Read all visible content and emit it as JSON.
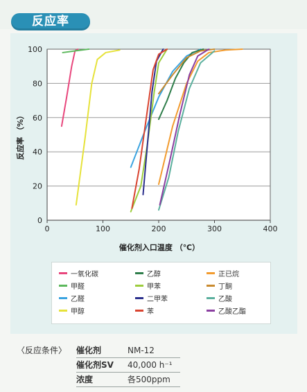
{
  "header": {
    "title": "反应率"
  },
  "chart_data": {
    "type": "line",
    "xlabel": "催化剂入口温度 （℃）",
    "ylabel": "反应率 （%）",
    "xlim": [
      0,
      400
    ],
    "ylim": [
      0,
      100
    ],
    "x_ticks": [
      0,
      100,
      200,
      300,
      400
    ],
    "y_ticks": [
      0,
      20,
      40,
      60,
      80,
      100
    ],
    "grid": "horizontal",
    "legend_position": "bottom",
    "series": [
      {
        "name": "一氧化碳",
        "color": "#e8467c",
        "points": [
          [
            26,
            55
          ],
          [
            35,
            72
          ],
          [
            44,
            90
          ],
          [
            50,
            99
          ],
          [
            55,
            100
          ]
        ]
      },
      {
        "name": "甲醛",
        "color": "#5cb85c",
        "points": [
          [
            28,
            98
          ],
          [
            50,
            99
          ],
          [
            75,
            100
          ]
        ]
      },
      {
        "name": "乙醛",
        "color": "#3aa3e0",
        "points": [
          [
            150,
            31
          ],
          [
            175,
            52
          ],
          [
            200,
            72
          ],
          [
            225,
            87
          ],
          [
            250,
            96
          ],
          [
            275,
            100
          ]
        ]
      },
      {
        "name": "甲醇",
        "color": "#e6e23a",
        "points": [
          [
            52,
            9
          ],
          [
            68,
            48
          ],
          [
            80,
            80
          ],
          [
            90,
            94
          ],
          [
            105,
            98
          ],
          [
            130,
            99.5
          ]
        ]
      },
      {
        "name": "乙醇",
        "color": "#2e7d4a",
        "points": [
          [
            200,
            59
          ],
          [
            215,
            70
          ],
          [
            230,
            83
          ],
          [
            245,
            92
          ],
          [
            260,
            98
          ],
          [
            280,
            100
          ]
        ]
      },
      {
        "name": "甲苯",
        "color": "#9ccc3c",
        "points": [
          [
            150,
            5
          ],
          [
            168,
            20
          ],
          [
            180,
            45
          ],
          [
            192,
            75
          ],
          [
            200,
            92
          ],
          [
            215,
            100
          ]
        ]
      },
      {
        "name": "二甲苯",
        "color": "#2b2f8c",
        "points": [
          [
            172,
            15
          ],
          [
            180,
            45
          ],
          [
            188,
            75
          ],
          [
            196,
            93
          ],
          [
            208,
            100
          ]
        ]
      },
      {
        "name": "苯",
        "color": "#d9432f",
        "points": [
          [
            152,
            7
          ],
          [
            165,
            30
          ],
          [
            180,
            65
          ],
          [
            190,
            88
          ],
          [
            200,
            97
          ],
          [
            215,
            100
          ]
        ]
      },
      {
        "name": "正已烷",
        "color": "#f29b2e",
        "points": [
          [
            200,
            21
          ],
          [
            225,
            55
          ],
          [
            250,
            80
          ],
          [
            270,
            93
          ],
          [
            290,
            98
          ],
          [
            320,
            99.5
          ],
          [
            350,
            100
          ]
        ]
      },
      {
        "name": "丁酮",
        "color": "#c98a2e",
        "points": [
          [
            200,
            74
          ],
          [
            225,
            85
          ],
          [
            250,
            95
          ],
          [
            275,
            99
          ],
          [
            300,
            100
          ]
        ]
      },
      {
        "name": "乙酸",
        "color": "#5aaf9d",
        "points": [
          [
            200,
            6
          ],
          [
            218,
            25
          ],
          [
            235,
            52
          ],
          [
            255,
            77
          ],
          [
            275,
            92
          ],
          [
            300,
            99
          ]
        ]
      },
      {
        "name": "乙酸乙酯",
        "color": "#8a3ea0",
        "points": [
          [
            202,
            9
          ],
          [
            220,
            35
          ],
          [
            238,
            62
          ],
          [
            255,
            85
          ],
          [
            270,
            96
          ],
          [
            290,
            100
          ]
        ]
      }
    ]
  },
  "legend": {
    "items": [
      {
        "label": "一氧化碳",
        "color": "#e8467c"
      },
      {
        "label": "乙醇",
        "color": "#2e7d4a"
      },
      {
        "label": "正已烷",
        "color": "#f29b2e"
      },
      {
        "label": "甲醛",
        "color": "#5cb85c"
      },
      {
        "label": "甲苯",
        "color": "#9ccc3c"
      },
      {
        "label": "丁酮",
        "color": "#c98a2e"
      },
      {
        "label": "乙醛",
        "color": "#3aa3e0"
      },
      {
        "label": "二甲苯",
        "color": "#2b2f8c"
      },
      {
        "label": "乙酸",
        "color": "#5aaf9d"
      },
      {
        "label": "甲醇",
        "color": "#e6e23a"
      },
      {
        "label": "苯",
        "color": "#d9432f"
      },
      {
        "label": "乙酸乙酯",
        "color": "#8a3ea0"
      }
    ]
  },
  "conditions": {
    "heading": "〈反应条件〉",
    "rows": [
      {
        "key": "催化剂",
        "value": "NM-12"
      },
      {
        "key": "催化剂SV",
        "value": "40,000 h⁻¹"
      },
      {
        "key": "浓度",
        "value": "各500ppm"
      }
    ]
  }
}
